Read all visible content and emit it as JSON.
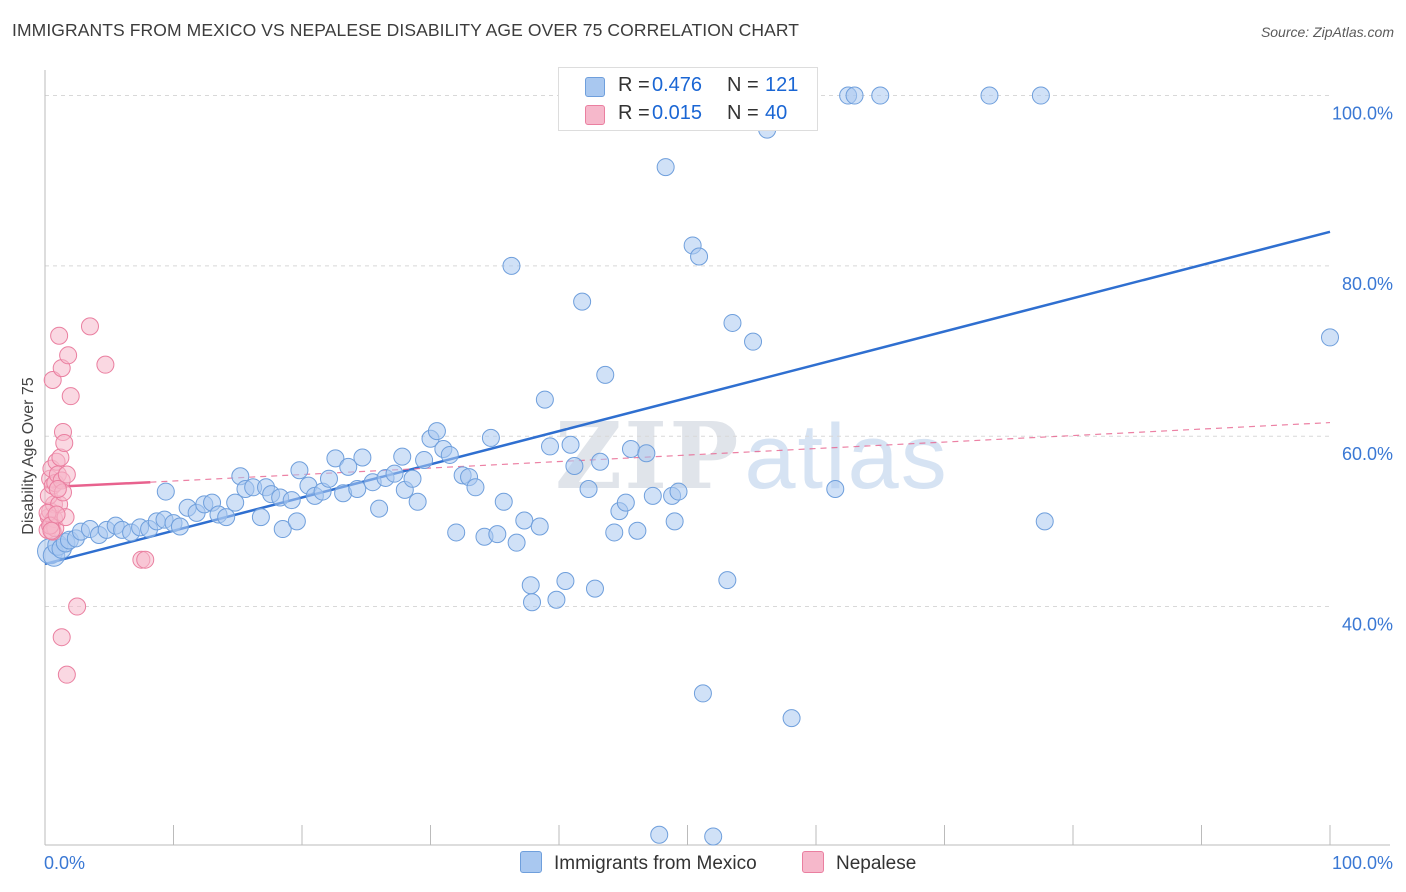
{
  "title": "IMMIGRANTS FROM MEXICO VS NEPALESE DISABILITY AGE OVER 75 CORRELATION CHART",
  "source": "Source: ZipAtlas.com",
  "watermark": {
    "zip": "ZIP",
    "atlas": "atlas"
  },
  "colors": {
    "blue_fill": "#a9c8f0",
    "blue_stroke": "#6f9fdc",
    "blue_line": "#2f6fd0",
    "pink_fill": "#f6b8cb",
    "pink_stroke": "#ea7fa0",
    "pink_line": "#e8628e",
    "grid": "#d8d8d8",
    "axis_label_blue": "#3a78d4"
  },
  "legend": {
    "rows": [
      {
        "r_label": "R =",
        "r_value": "0.476",
        "n_label": "N =",
        "n_value": "121",
        "series": "Immigrants from Mexico"
      },
      {
        "r_label": "R =",
        "r_value": "0.015",
        "n_label": "N =",
        "n_value": "40",
        "series": "Nepalese"
      }
    ]
  },
  "chart_data": {
    "type": "scatter",
    "title": "IMMIGRANTS FROM MEXICO VS NEPALESE DISABILITY AGE OVER 75 CORRELATION CHART",
    "xlabel": "",
    "ylabel": "Disability Age Over 75",
    "xlim": [
      0,
      100
    ],
    "ylim": [
      12,
      103
    ],
    "x_tick_labels": [
      "0.0%",
      "100.0%"
    ],
    "y_ticks": [
      40,
      60,
      80,
      100
    ],
    "y_tick_labels": [
      "40.0%",
      "60.0%",
      "80.0%",
      "100.0%"
    ],
    "grid": true,
    "legend_placement": "top-center",
    "series": [
      {
        "name": "Immigrants from Mexico",
        "color": "#a9c8f0",
        "trend": {
          "x": [
            0,
            100
          ],
          "y": [
            45.0,
            84.0
          ],
          "style": "solid"
        },
        "points": [
          [
            0.4,
            46.5,
            2.2
          ],
          [
            0.7,
            46.0,
            1.6
          ],
          [
            1.0,
            47.2,
            1.4
          ],
          [
            1.3,
            46.8,
            1.3
          ],
          [
            1.6,
            47.5,
            1.2
          ],
          [
            1.9,
            47.8,
            1.1
          ],
          [
            2.4,
            48.0,
            1.0
          ],
          [
            2.8,
            48.8,
            1.0
          ],
          [
            3.5,
            49.1,
            1.0
          ],
          [
            4.2,
            48.4,
            1.0
          ],
          [
            4.8,
            49.0,
            1.0
          ],
          [
            5.5,
            49.5,
            1.0
          ],
          [
            6.0,
            49.0,
            1.0
          ],
          [
            6.7,
            48.7,
            1.0
          ],
          [
            7.4,
            49.3,
            1.0
          ],
          [
            8.1,
            49.1,
            1.0
          ],
          [
            8.7,
            50.0,
            1.0
          ],
          [
            9.3,
            50.2,
            1.0
          ],
          [
            9.4,
            53.5,
            1.0
          ],
          [
            10.0,
            49.8,
            1.0
          ],
          [
            10.5,
            49.4,
            1.0
          ],
          [
            11.1,
            51.6,
            1.0
          ],
          [
            11.8,
            51.0,
            1.0
          ],
          [
            12.4,
            52.0,
            1.0
          ],
          [
            13.0,
            52.2,
            1.0
          ],
          [
            13.5,
            50.8,
            1.0
          ],
          [
            14.1,
            50.5,
            1.0
          ],
          [
            14.8,
            52.2,
            1.0
          ],
          [
            15.2,
            55.3,
            1.0
          ],
          [
            15.6,
            53.8,
            1.0
          ],
          [
            16.2,
            54.0,
            1.0
          ],
          [
            16.8,
            50.5,
            1.0
          ],
          [
            17.2,
            54.0,
            1.0
          ],
          [
            17.6,
            53.2,
            1.0
          ],
          [
            18.3,
            52.8,
            1.0
          ],
          [
            18.5,
            49.1,
            1.0
          ],
          [
            19.2,
            52.5,
            1.0
          ],
          [
            19.6,
            50.0,
            1.0
          ],
          [
            19.8,
            56.0,
            1.0
          ],
          [
            20.5,
            54.2,
            1.0
          ],
          [
            21.0,
            53.0,
            1.0
          ],
          [
            21.6,
            53.5,
            1.0
          ],
          [
            22.1,
            55.0,
            1.0
          ],
          [
            22.6,
            57.4,
            1.0
          ],
          [
            23.2,
            53.3,
            1.0
          ],
          [
            23.6,
            56.4,
            1.0
          ],
          [
            24.3,
            53.8,
            1.0
          ],
          [
            24.7,
            57.5,
            1.0
          ],
          [
            25.5,
            54.6,
            1.0
          ],
          [
            26.0,
            51.5,
            1.0
          ],
          [
            26.5,
            55.1,
            1.0
          ],
          [
            27.2,
            55.6,
            1.0
          ],
          [
            27.8,
            57.6,
            1.0
          ],
          [
            28.0,
            53.7,
            1.0
          ],
          [
            28.6,
            55.0,
            1.0
          ],
          [
            29.0,
            52.3,
            1.0
          ],
          [
            29.5,
            57.2,
            1.0
          ],
          [
            30.0,
            59.7,
            1.0
          ],
          [
            30.5,
            60.6,
            1.0
          ],
          [
            31.0,
            58.5,
            1.0
          ],
          [
            31.5,
            57.8,
            1.0
          ],
          [
            32.0,
            48.7,
            1.0
          ],
          [
            32.5,
            55.4,
            1.0
          ],
          [
            33.0,
            55.2,
            1.0
          ],
          [
            33.5,
            54.0,
            1.0
          ],
          [
            34.2,
            48.2,
            1.0
          ],
          [
            34.7,
            59.8,
            1.0
          ],
          [
            35.2,
            48.5,
            1.0
          ],
          [
            35.7,
            52.3,
            1.0
          ],
          [
            36.3,
            80.0,
            1.0
          ],
          [
            36.7,
            47.5,
            1.0
          ],
          [
            37.3,
            50.1,
            1.0
          ],
          [
            37.8,
            42.5,
            1.0
          ],
          [
            37.9,
            40.5,
            1.0
          ],
          [
            38.5,
            49.4,
            1.0
          ],
          [
            38.9,
            64.3,
            1.0
          ],
          [
            39.3,
            58.8,
            1.0
          ],
          [
            39.8,
            40.8,
            1.0
          ],
          [
            40.5,
            43.0,
            1.0
          ],
          [
            40.9,
            59.0,
            1.0
          ],
          [
            41.2,
            56.5,
            1.0
          ],
          [
            41.8,
            75.8,
            1.0
          ],
          [
            42.3,
            53.8,
            1.0
          ],
          [
            42.8,
            42.1,
            1.0
          ],
          [
            43.2,
            57.0,
            1.0
          ],
          [
            43.6,
            67.2,
            1.0
          ],
          [
            44.3,
            48.7,
            1.0
          ],
          [
            44.7,
            51.2,
            1.0
          ],
          [
            45.2,
            52.2,
            1.0
          ],
          [
            45.6,
            58.5,
            1.0
          ],
          [
            46.1,
            48.9,
            1.0
          ],
          [
            46.8,
            58.0,
            1.0
          ],
          [
            47.3,
            53.0,
            1.0
          ],
          [
            47.8,
            13.2,
            1.0
          ],
          [
            48.3,
            91.6,
            1.0
          ],
          [
            48.8,
            53.0,
            1.0
          ],
          [
            49.3,
            53.5,
            1.0
          ],
          [
            49.0,
            50.0,
            1.0
          ],
          [
            50.4,
            82.4,
            1.0
          ],
          [
            50.9,
            81.1,
            1.0
          ],
          [
            51.2,
            29.8,
            1.0
          ],
          [
            52.0,
            13.0,
            1.0
          ],
          [
            53.1,
            43.1,
            1.0
          ],
          [
            53.5,
            73.3,
            1.0
          ],
          [
            54.0,
            98.1,
            1.0
          ],
          [
            54.5,
            100.0,
            1.0
          ],
          [
            55.1,
            71.1,
            1.0
          ],
          [
            56.2,
            96.0,
            1.0
          ],
          [
            56.5,
            100.0,
            1.0
          ],
          [
            58.1,
            26.9,
            1.0
          ],
          [
            61.5,
            53.8,
            1.0
          ],
          [
            62.5,
            100.0,
            1.0
          ],
          [
            63.0,
            100.0,
            1.0
          ],
          [
            65.0,
            100.0,
            1.0
          ],
          [
            73.5,
            100.0,
            1.0
          ],
          [
            77.5,
            100.0,
            1.0
          ],
          [
            77.8,
            50.0,
            1.0
          ],
          [
            100.0,
            71.6,
            1.0
          ],
          [
            20.0,
            38.8,
            0.0
          ]
        ]
      },
      {
        "name": "Nepalese",
        "color": "#f6b8cb",
        "trend": {
          "x": [
            0,
            8.2
          ],
          "y": [
            54.0,
            54.6
          ],
          "style": "solid",
          "extension": {
            "x": [
              8.2,
              100
            ],
            "y": [
              54.6,
              61.6
            ],
            "style": "dashed"
          }
        },
        "points": [
          [
            0.2,
            49.0,
            1.0
          ],
          [
            0.3,
            50.5,
            1.0
          ],
          [
            0.4,
            51.2,
            1.0
          ],
          [
            0.5,
            49.6,
            1.0
          ],
          [
            0.6,
            48.8,
            1.0
          ],
          [
            0.7,
            52.0,
            1.0
          ],
          [
            0.3,
            53.0,
            1.0
          ],
          [
            0.4,
            55.0,
            1.0
          ],
          [
            0.5,
            56.2,
            1.0
          ],
          [
            0.6,
            54.2,
            1.0
          ],
          [
            0.7,
            50.3,
            1.0
          ],
          [
            0.8,
            49.2,
            1.0
          ],
          [
            0.6,
            66.6,
            1.0
          ],
          [
            0.8,
            54.5,
            1.0
          ],
          [
            0.9,
            57.0,
            1.0
          ],
          [
            1.0,
            55.5,
            1.0
          ],
          [
            1.1,
            52.0,
            1.0
          ],
          [
            1.2,
            57.5,
            1.0
          ],
          [
            1.3,
            54.8,
            1.0
          ],
          [
            1.4,
            53.4,
            1.0
          ],
          [
            1.1,
            71.8,
            1.0
          ],
          [
            1.3,
            68.0,
            1.0
          ],
          [
            1.4,
            60.5,
            1.0
          ],
          [
            1.5,
            59.2,
            1.0
          ],
          [
            1.6,
            50.5,
            1.0
          ],
          [
            1.7,
            55.5,
            1.0
          ],
          [
            1.8,
            69.5,
            1.0
          ],
          [
            2.0,
            64.7,
            1.0
          ],
          [
            2.5,
            40.0,
            1.0
          ],
          [
            1.3,
            36.4,
            1.0
          ],
          [
            1.7,
            32.0,
            1.0
          ],
          [
            3.5,
            72.9,
            1.0
          ],
          [
            4.7,
            68.4,
            1.0
          ],
          [
            7.5,
            45.5,
            1.0
          ],
          [
            7.8,
            45.5,
            1.0
          ],
          [
            0.2,
            51.0,
            1.0
          ],
          [
            0.4,
            49.5,
            1.0
          ],
          [
            0.9,
            50.8,
            1.0
          ],
          [
            1.0,
            53.8,
            1.0
          ],
          [
            0.5,
            48.9,
            1.0
          ]
        ]
      }
    ]
  },
  "bottom_legend": {
    "items": [
      {
        "label": "Immigrants from Mexico"
      },
      {
        "label": "Nepalese"
      }
    ]
  }
}
